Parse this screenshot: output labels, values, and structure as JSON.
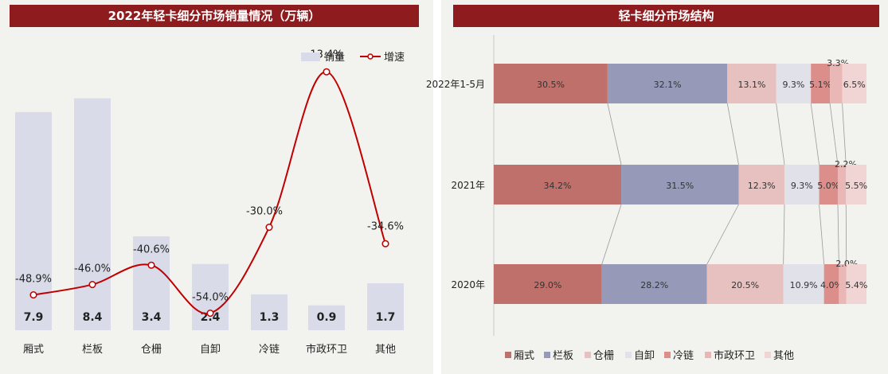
{
  "chart_data": [
    {
      "type": "bar",
      "title": "2022年轻卡细分市场销量情况（万辆）",
      "categories": [
        "厢式",
        "栏板",
        "仓栅",
        "自卸",
        "冷链",
        "市政环卫",
        "其他"
      ],
      "series": [
        {
          "name": "销量",
          "kind": "bar",
          "values": [
            7.9,
            8.4,
            3.4,
            2.4,
            1.3,
            0.9,
            1.7
          ],
          "labels": [
            "7.9",
            "8.4",
            "3.4",
            "2.4",
            "1.3",
            "0.9",
            "1.7"
          ]
        },
        {
          "name": "增速",
          "kind": "line",
          "values": [
            -48.9,
            -46.0,
            -40.6,
            -54.0,
            -30.0,
            13.4,
            -34.6
          ],
          "labels": [
            "-48.9%",
            "-46.0%",
            "-40.6%",
            "-54.0%",
            "-30.0%",
            "13.4%",
            "-34.6%"
          ]
        }
      ],
      "legend": "top-right",
      "colors": {
        "bar": "#d9dce8",
        "line": "#c00000",
        "title_bg": "#8e1c1f"
      }
    },
    {
      "type": "bar",
      "stacked": "100%",
      "orientation": "horizontal",
      "title": "轻卡细分市场结构",
      "categories": [
        "2022年1-5月",
        "2021年",
        "2020年"
      ],
      "series": [
        {
          "name": "厢式",
          "color": "#c0706a",
          "values": [
            30.5,
            34.2,
            29.0
          ]
        },
        {
          "name": "栏板",
          "color": "#9699b8",
          "values": [
            32.1,
            31.5,
            28.2
          ]
        },
        {
          "name": "仓栅",
          "color": "#e6c1c0",
          "values": [
            13.1,
            12.3,
            20.5
          ]
        },
        {
          "name": "自卸",
          "color": "#e1e1ea",
          "values": [
            9.3,
            9.3,
            10.9
          ]
        },
        {
          "name": "冷链",
          "color": "#dc8e8a",
          "values": [
            5.1,
            5.0,
            4.0
          ]
        },
        {
          "name": "市政环卫",
          "color": "#e9b7b5",
          "values": [
            3.3,
            2.2,
            2.0
          ]
        },
        {
          "name": "其他",
          "color": "#f1d4d4",
          "values": [
            6.5,
            5.5,
            5.4
          ]
        }
      ],
      "legend": "bottom"
    }
  ]
}
